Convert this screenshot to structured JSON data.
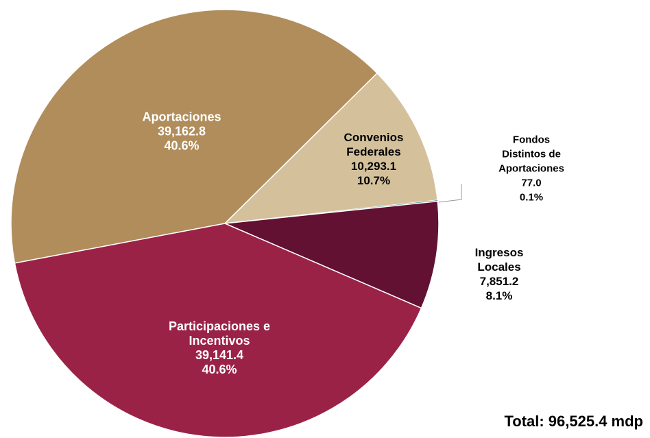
{
  "chart_data": {
    "type": "pie",
    "categories": [
      "Aportaciones",
      "Convenios Federales",
      "Fondos Distintos de Aportaciones",
      "Ingresos Locales",
      "Participaciones e Incentivos"
    ],
    "values": [
      39162.8,
      10293.1,
      77.0,
      7851.2,
      39141.4
    ],
    "value_labels": [
      "39,162.8",
      "10,293.1",
      "77.0",
      "7,851.2",
      "39,141.4"
    ],
    "percent_labels": [
      "40.6%",
      "10.7%",
      "0.1%",
      "8.1%",
      "40.6%"
    ],
    "colors": [
      "#b08d5b",
      "#d4c19c",
      "#1f7a6e",
      "#621132",
      "#9b2247"
    ],
    "annotation": "Total: 96,525.4 mdp"
  }
}
